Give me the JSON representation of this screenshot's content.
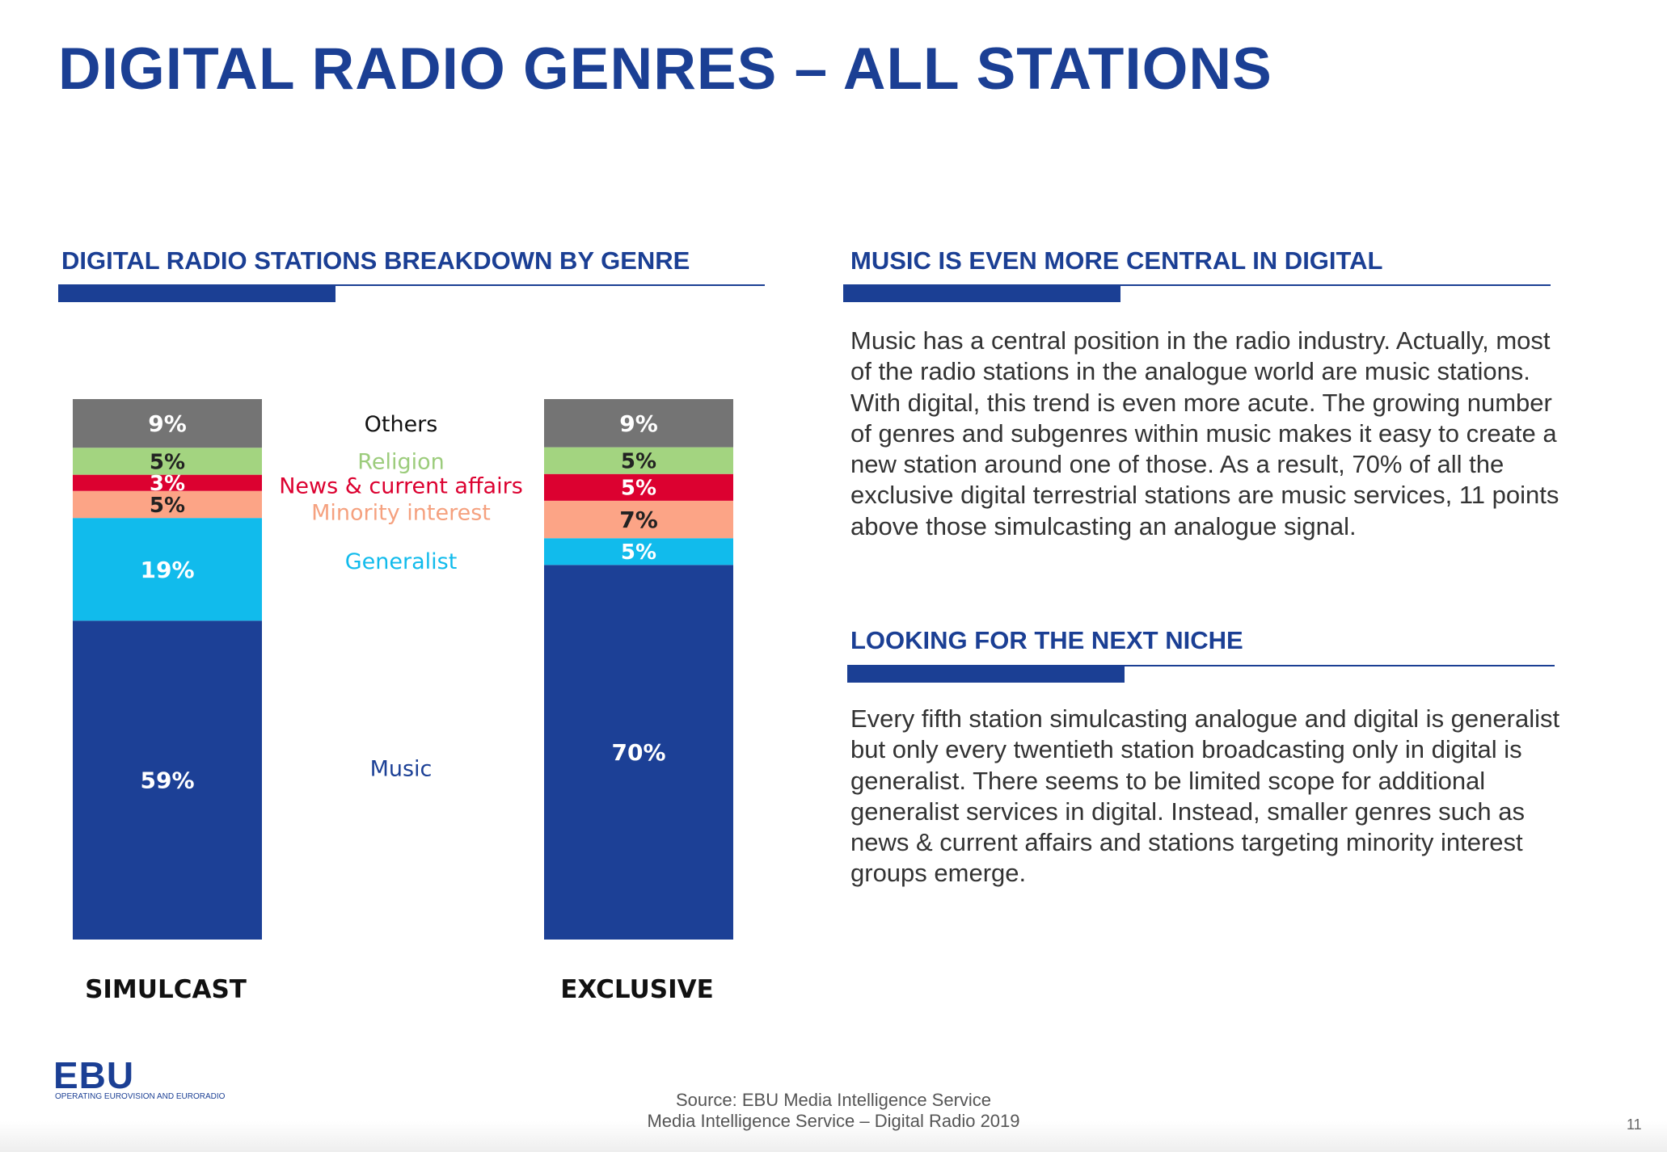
{
  "title": "DIGITAL RADIO GENRES – ALL STATIONS",
  "sections": {
    "chart_heading": "DIGITAL RADIO STATIONS BREAKDOWN BY GENRE",
    "music_heading": "MUSIC IS EVEN MORE CENTRAL IN DIGITAL",
    "music_text": "Music has a central position in the radio industry. Actually, most of the radio stations in the analogue world are music stations. With digital, this trend is even more acute. The growing number of genres and subgenres within music makes it easy to create a new station around one of those. As a result, 70% of all the exclusive digital terrestrial stations are music services, 11 points above those simulcasting an analogue signal.",
    "niche_heading": "LOOKING FOR THE NEXT NICHE",
    "niche_text": "Every fifth station simulcasting analogue and digital is generalist but only every twentieth station broadcasting only in digital is generalist. There seems to be limited scope for additional generalist services in digital. Instead, smaller genres such as news & current affairs and stations targeting minority interest groups emerge."
  },
  "chart_data": {
    "type": "bar",
    "stacked": true,
    "orientation": "vertical",
    "normalized": true,
    "categories": [
      "SIMULCAST",
      "EXCLUSIVE"
    ],
    "unit": "%",
    "legend_position": "between-bars",
    "series": [
      {
        "name": "Music",
        "values": [
          59,
          70
        ],
        "labels": [
          "59%",
          "70%"
        ],
        "color": "#1c4096",
        "label_color": "#ffffff",
        "legend_color": "#1c4096"
      },
      {
        "name": "Generalist",
        "values": [
          19,
          5
        ],
        "labels": [
          "19%",
          "5%"
        ],
        "color": "#11bbec",
        "label_color": "#ffffff",
        "legend_color": "#11bbec"
      },
      {
        "name": "Minority interest",
        "values": [
          5,
          7
        ],
        "labels": [
          "5%",
          "7%"
        ],
        "color": "#fca486",
        "label_color": "#222222",
        "legend_color": "#f5a17f"
      },
      {
        "name": "News & current affairs",
        "values": [
          3,
          5
        ],
        "labels": [
          "3%",
          "5%"
        ],
        "color": "#dc0130",
        "label_color": "#ffffff",
        "legend_color": "#dc0130"
      },
      {
        "name": "Religion",
        "values": [
          5,
          5
        ],
        "labels": [
          "5%",
          "5%"
        ],
        "color": "#a3d480",
        "label_color": "#222222",
        "legend_color": "#9ccc7c"
      },
      {
        "name": "Others",
        "values": [
          9,
          9
        ],
        "labels": [
          "9%",
          "9%"
        ],
        "color": "#747474",
        "label_color": "#ffffff",
        "legend_color": "#111111"
      }
    ],
    "grid": false
  },
  "footer": {
    "logo": "EBU",
    "logo_tagline": "OPERATING EUROVISION AND EURORADIO",
    "source_line1": "Source: EBU Media Intelligence Service",
    "source_line2": "Media Intelligence Service – Digital Radio 2019",
    "page_number": "11"
  },
  "colors": {
    "brand_blue": "#1b3f94"
  }
}
